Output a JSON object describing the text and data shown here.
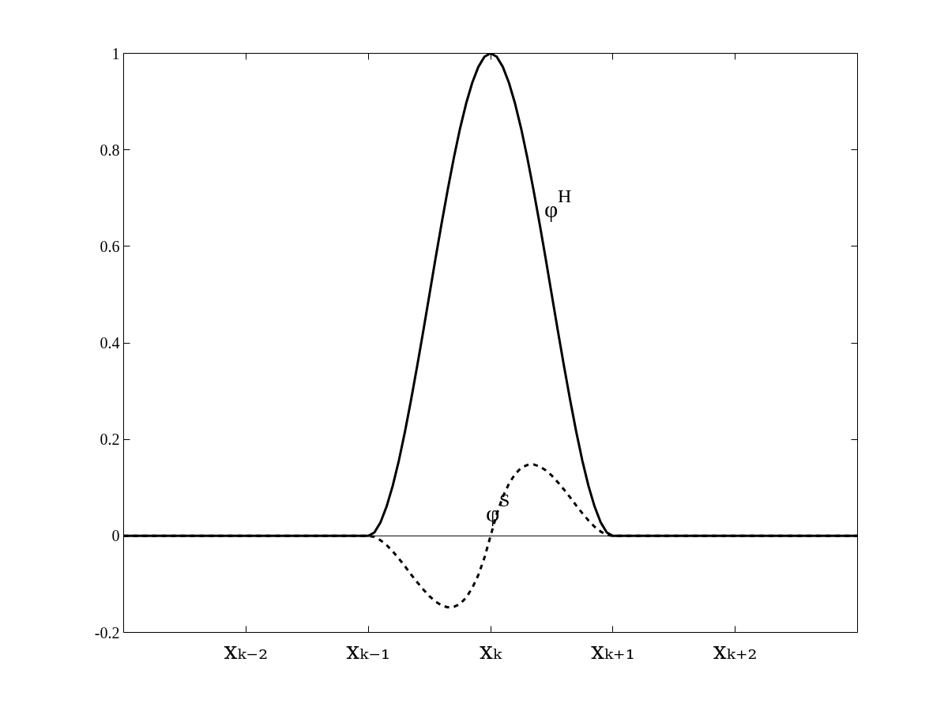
{
  "chart_data": {
    "type": "line",
    "categories": [
      null,
      null,
      null,
      null,
      null,
      null,
      null,
      null,
      null,
      null,
      null,
      null,
      null,
      null,
      null,
      null,
      null,
      null,
      null,
      null,
      "xₖ₋₂",
      null,
      null,
      null,
      null,
      null,
      null,
      null,
      null,
      null,
      null,
      null,
      null,
      null,
      null,
      null,
      null,
      null,
      null,
      null,
      "xₖ₋₁",
      null,
      null,
      null,
      null,
      null,
      null,
      null,
      null,
      null,
      null,
      null,
      null,
      null,
      null,
      null,
      null,
      null,
      null,
      null,
      "xₖ",
      null,
      null,
      null,
      null,
      null,
      null,
      null,
      null,
      null,
      null,
      null,
      null,
      null,
      null,
      null,
      null,
      null,
      null,
      null,
      "xₖ₊₁",
      null,
      null,
      null,
      null,
      null,
      null,
      null,
      null,
      null,
      null,
      null,
      null,
      null,
      null,
      null,
      null,
      null,
      null,
      null,
      "xₖ₊₂",
      null,
      null,
      null,
      null,
      null,
      null,
      null,
      null,
      null,
      null,
      null,
      null,
      null,
      null,
      null,
      null,
      null,
      null,
      null,
      null
    ],
    "series": [
      {
        "name": "φ$^{H}$",
        "color": "#000000",
        "line_style": "solid",
        "values": [
          0,
          0,
          0,
          0,
          0,
          0,
          0,
          0,
          0,
          0,
          0,
          0,
          0,
          0,
          0,
          0,
          0,
          0,
          0,
          0,
          0,
          0,
          0,
          0,
          0,
          0,
          0,
          0,
          0,
          0,
          0,
          0,
          0,
          0,
          0,
          0,
          0,
          0,
          0,
          0,
          0,
          0.007,
          0.028,
          0.061,
          0.104,
          0.156,
          0.216,
          0.282,
          0.352,
          0.425,
          0.5,
          0.575,
          0.648,
          0.718,
          0.784,
          0.844,
          0.896,
          0.939,
          0.972,
          0.993,
          1,
          0.993,
          0.972,
          0.939,
          0.896,
          0.844,
          0.784,
          0.718,
          0.648,
          0.575,
          0.5,
          0.425,
          0.352,
          0.282,
          0.216,
          0.156,
          0.104,
          0.061,
          0.028,
          0.007,
          0,
          0,
          0,
          0,
          0,
          0,
          0,
          0,
          0,
          0,
          0,
          0,
          0,
          0,
          0,
          0,
          0,
          0,
          0,
          0,
          0,
          0,
          0,
          0,
          0,
          0,
          0,
          0,
          0,
          0,
          0,
          0,
          0,
          0,
          0,
          0,
          0,
          0,
          0,
          0,
          0
        ]
      },
      {
        "name": "φ$^{S}$",
        "color": "#000000",
        "line_style": "dashed",
        "values": [
          0,
          0,
          0,
          0,
          0,
          0,
          0,
          0,
          0,
          0,
          0,
          0,
          0,
          0,
          0,
          0,
          0,
          0,
          0,
          0,
          0,
          0,
          0,
          0,
          0,
          0,
          0,
          0,
          0,
          0,
          0,
          0,
          0,
          0,
          0,
          0,
          0,
          0,
          0,
          0,
          0,
          -0.002,
          -0.009,
          -0.019,
          -0.032,
          -0.047,
          -0.063,
          -0.08,
          -0.096,
          -0.111,
          -0.125,
          -0.136,
          -0.144,
          -0.148,
          -0.147,
          -0.141,
          -0.128,
          -0.108,
          -0.081,
          -0.045,
          0,
          0.045,
          0.081,
          0.108,
          0.128,
          0.141,
          0.147,
          0.148,
          0.144,
          0.136,
          0.125,
          0.111,
          0.096,
          0.08,
          0.063,
          0.047,
          0.032,
          0.019,
          0.009,
          0.002,
          0,
          0,
          0,
          0,
          0,
          0,
          0,
          0,
          0,
          0,
          0,
          0,
          0,
          0,
          0,
          0,
          0,
          0,
          0,
          0,
          0,
          0,
          0,
          0,
          0,
          0,
          0,
          0,
          0,
          0,
          0,
          0,
          0,
          0,
          0,
          0,
          0,
          0,
          0,
          0,
          0
        ]
      }
    ],
    "ylim": [
      -0.2,
      1
    ],
    "yticks": [
      -0.2,
      0,
      0.2,
      0.4,
      0.6,
      0.8,
      1
    ],
    "ref_lines": [
      {
        "axis": "y",
        "value": 0,
        "color": "#000000"
      }
    ],
    "grid": false
  }
}
